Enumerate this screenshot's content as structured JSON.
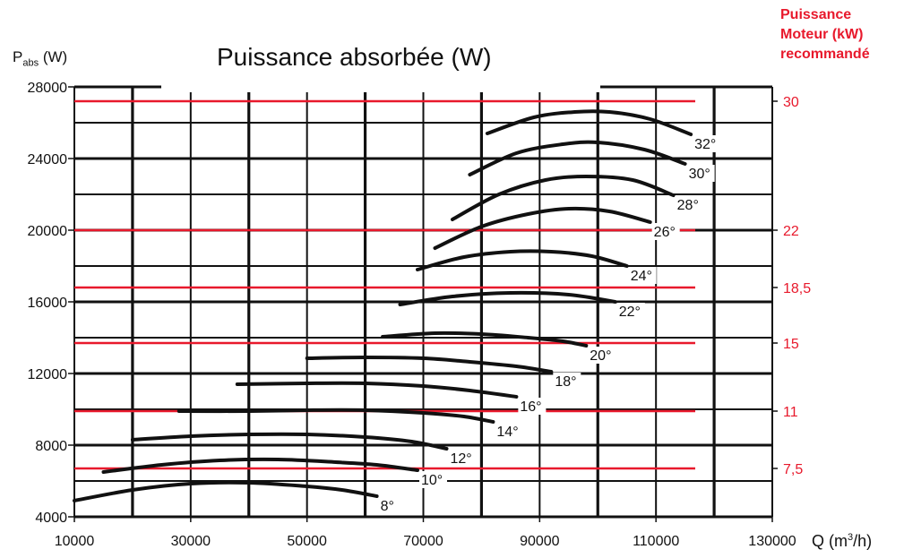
{
  "chart_data": {
    "type": "line",
    "title": "Puissance absorbée (W)",
    "ylabel": {
      "main": "P",
      "sub": "abs",
      "unit": " (W)"
    },
    "xlabel": {
      "main": "Q (m",
      "sup": "3",
      "tail": "/h)"
    },
    "xlim": [
      10000,
      130000
    ],
    "ylim": [
      4000,
      28000
    ],
    "xticks": [
      "10000",
      "30000",
      "50000",
      "70000",
      "90000",
      "110000",
      "130000"
    ],
    "yticks": [
      "4000",
      "8000",
      "12000",
      "16000",
      "20000",
      "24000",
      "28000"
    ],
    "grid": true,
    "right_axis": {
      "title": [
        "Puissance",
        "Moteur (kW)",
        "recommandé"
      ],
      "color": "#e8192c",
      "levels": [
        {
          "label": "30",
          "y": 27200
        },
        {
          "label": "22",
          "y": 20000
        },
        {
          "label": "18,5",
          "y": 16800
        },
        {
          "label": "15",
          "y": 13700
        },
        {
          "label": "11",
          "y": 9900
        },
        {
          "label": "7,5",
          "y": 6700
        }
      ]
    },
    "series": [
      {
        "name": "8°",
        "x": [
          10000,
          20000,
          30000,
          40000,
          50000,
          56000,
          62000
        ],
        "y": [
          4900,
          5500,
          5850,
          5900,
          5700,
          5500,
          5150
        ]
      },
      {
        "name": "10°",
        "x": [
          15000,
          25000,
          35000,
          45000,
          55000,
          62000,
          69000
        ],
        "y": [
          6500,
          6900,
          7150,
          7200,
          7050,
          6900,
          6600
        ]
      },
      {
        "name": "12°",
        "x": [
          20000,
          30000,
          40000,
          50000,
          60000,
          68000,
          74000
        ],
        "y": [
          8300,
          8500,
          8600,
          8600,
          8450,
          8200,
          7800
        ]
      },
      {
        "name": "14°",
        "x": [
          28000,
          40000,
          50000,
          60000,
          70000,
          77000,
          82000
        ],
        "y": [
          9900,
          9900,
          9950,
          9950,
          9800,
          9600,
          9300
        ]
      },
      {
        "name": "16°",
        "x": [
          38000,
          50000,
          60000,
          70000,
          78000,
          86000
        ],
        "y": [
          11400,
          11450,
          11450,
          11300,
          11050,
          10700
        ]
      },
      {
        "name": "18°",
        "x": [
          50000,
          60000,
          70000,
          78000,
          86000,
          92000
        ],
        "y": [
          12850,
          12900,
          12850,
          12650,
          12400,
          12100
        ]
      },
      {
        "name": "20°",
        "x": [
          63000,
          72000,
          80000,
          88000,
          94000,
          98000
        ],
        "y": [
          14050,
          14250,
          14200,
          14000,
          13800,
          13550
        ]
      },
      {
        "name": "22°",
        "x": [
          66000,
          75000,
          85000,
          95000,
          103000
        ],
        "y": [
          15850,
          16300,
          16500,
          16400,
          16000
        ]
      },
      {
        "name": "24°",
        "x": [
          69000,
          77000,
          85000,
          92000,
          99000,
          105000
        ],
        "y": [
          17800,
          18500,
          18800,
          18800,
          18550,
          18000
        ]
      },
      {
        "name": "26°",
        "x": [
          72000,
          80000,
          88000,
          95000,
          102000,
          109000
        ],
        "y": [
          19000,
          20200,
          20900,
          21200,
          21050,
          20450
        ]
      },
      {
        "name": "28°",
        "x": [
          75000,
          83000,
          91000,
          98000,
          106000,
          113000
        ],
        "y": [
          20600,
          22000,
          22800,
          23000,
          22800,
          21950
        ]
      },
      {
        "name": "30°",
        "x": [
          78000,
          86000,
          94000,
          100000,
          108000,
          115000
        ],
        "y": [
          23100,
          24300,
          24800,
          24900,
          24500,
          23700
        ]
      },
      {
        "name": "32°",
        "x": [
          81000,
          89000,
          96000,
          102000,
          109000,
          116000
        ],
        "y": [
          25400,
          26300,
          26600,
          26600,
          26200,
          25350
        ]
      }
    ]
  }
}
